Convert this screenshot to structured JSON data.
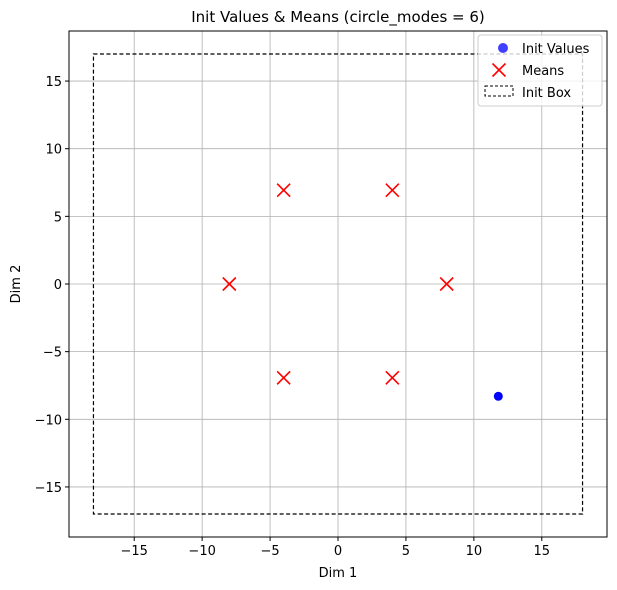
{
  "chart_data": {
    "type": "scatter",
    "title": "Init Values & Means (circle_modes = 6)",
    "xlabel": "Dim 1",
    "ylabel": "Dim 2",
    "xlim": [
      -19.8,
      19.8
    ],
    "ylim": [
      -18.7,
      18.7
    ],
    "xticks": [
      -15,
      -10,
      -5,
      0,
      5,
      10,
      15
    ],
    "yticks": [
      -15,
      -10,
      -5,
      0,
      5,
      10,
      15
    ],
    "xtick_labels": [
      "−15",
      "−10",
      "−5",
      "0",
      "5",
      "10",
      "15"
    ],
    "ytick_labels": [
      "−15",
      "−10",
      "−5",
      "0",
      "5",
      "10",
      "15"
    ],
    "grid": true,
    "legend_position": "top-right",
    "series": [
      {
        "name": "Init Values",
        "marker": "circle",
        "color": "#0000ff",
        "points": [
          [
            11.8,
            -8.3
          ]
        ]
      },
      {
        "name": "Means",
        "marker": "x",
        "color": "#ff0000",
        "points": [
          [
            8,
            0
          ],
          [
            4,
            6.93
          ],
          [
            -4,
            6.93
          ],
          [
            -8,
            0
          ],
          [
            -4,
            -6.93
          ],
          [
            4,
            -6.93
          ]
        ]
      }
    ],
    "box": {
      "name": "Init Box",
      "color": "#000000",
      "style": "dashed",
      "x_range": [
        -18,
        18
      ],
      "y_range": [
        -17,
        17
      ]
    }
  }
}
